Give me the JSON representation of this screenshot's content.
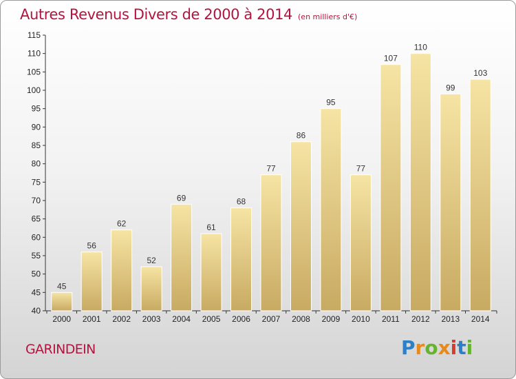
{
  "header": {
    "title": "Autres Revenus Divers de 2000 à 2014",
    "unit": "(en milliers d'€)"
  },
  "footer": {
    "place": "GARINDEIN",
    "brand": "Proxiti"
  },
  "colors": {
    "title": "#b3143f",
    "bar_top": "#f6e4a4",
    "bar_bottom": "#c8aa62",
    "brand_letters": [
      "#2f7fc8",
      "#e8891a",
      "#66b32e",
      "#e8891a",
      "#d53c2b",
      "#2f7fc8",
      "#66b32e"
    ]
  },
  "chart_data": {
    "type": "bar",
    "categories": [
      "2000",
      "2001",
      "2002",
      "2003",
      "2004",
      "2005",
      "2006",
      "2007",
      "2008",
      "2009",
      "2010",
      "2011",
      "2012",
      "2013",
      "2014"
    ],
    "values": [
      45,
      56,
      62,
      52,
      69,
      61,
      68,
      77,
      86,
      95,
      77,
      107,
      110,
      99,
      103
    ],
    "ylim": [
      40,
      115
    ],
    "yticks": [
      40,
      45,
      50,
      55,
      60,
      65,
      70,
      75,
      80,
      85,
      90,
      95,
      100,
      105,
      110,
      115
    ],
    "grid": false,
    "data_labels": true
  }
}
